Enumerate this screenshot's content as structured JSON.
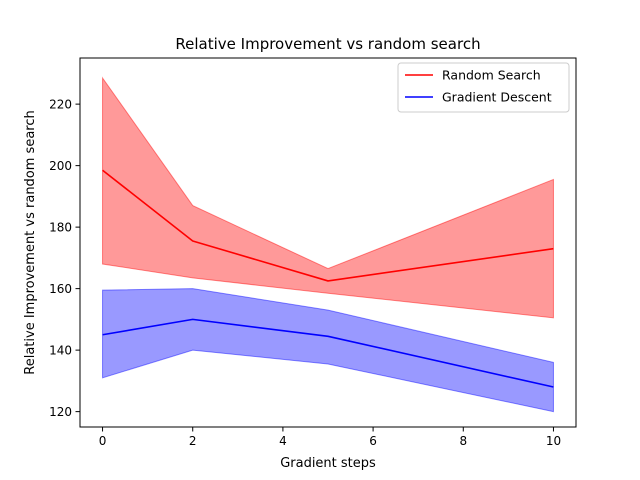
{
  "chart_data": {
    "type": "line",
    "title": "Relative Improvement vs random search",
    "xlabel": "Gradient steps",
    "ylabel": "Relative Improvement vs random search",
    "x": [
      0,
      2,
      5,
      10
    ],
    "xlim": [
      -0.5,
      10.5
    ],
    "ylim": [
      115,
      235
    ],
    "xticks": [
      0,
      2,
      4,
      6,
      8,
      10
    ],
    "yticks": [
      120,
      140,
      160,
      180,
      200,
      220
    ],
    "grid": false,
    "legend": "top-right",
    "series": [
      {
        "name": "Random Search",
        "color": "#ff0000",
        "band_color": "#ff9999",
        "values": [
          198.5,
          175.5,
          162.5,
          173
        ],
        "lower": [
          168,
          163.5,
          158.5,
          150.5
        ],
        "upper": [
          228.5,
          187,
          166.5,
          195.5
        ]
      },
      {
        "name": "Gradient Descent",
        "color": "#0000ff",
        "band_color": "#9999ff",
        "values": [
          145,
          150,
          144.5,
          128
        ],
        "lower": [
          131,
          140,
          135.5,
          120
        ],
        "upper": [
          159.5,
          160,
          153,
          136
        ]
      }
    ]
  }
}
